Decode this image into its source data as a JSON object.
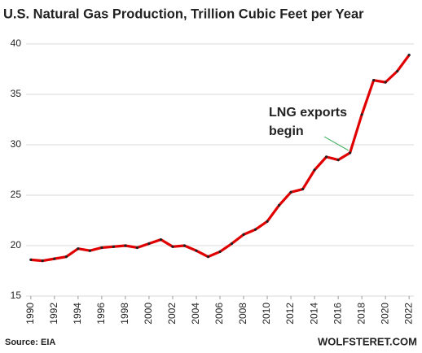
{
  "chart_data": {
    "type": "line",
    "title": "U.S. Natural Gas Production,  Trillion Cubic Feet per Year",
    "x": [
      1990,
      1991,
      1992,
      1993,
      1994,
      1995,
      1996,
      1997,
      1998,
      1999,
      2000,
      2001,
      2002,
      2003,
      2004,
      2005,
      2006,
      2007,
      2008,
      2009,
      2010,
      2011,
      2012,
      2013,
      2014,
      2015,
      2016,
      2017,
      2018,
      2019,
      2020,
      2021,
      2022
    ],
    "series": [
      {
        "name": "U.S. Natural Gas Production",
        "color": "#e00000",
        "values": [
          18.6,
          18.5,
          18.7,
          18.9,
          19.7,
          19.5,
          19.8,
          19.9,
          20.0,
          19.8,
          20.2,
          20.6,
          19.9,
          20.0,
          19.5,
          18.9,
          19.4,
          20.2,
          21.1,
          21.6,
          22.4,
          24.0,
          25.3,
          25.6,
          27.5,
          28.8,
          28.5,
          29.2,
          33.0,
          36.4,
          36.2,
          37.3,
          38.9
        ]
      }
    ],
    "xlim": [
      1989.6,
      2022.4
    ],
    "xticks": [
      1990,
      1992,
      1994,
      1996,
      1998,
      2000,
      2002,
      2004,
      2006,
      2008,
      2010,
      2012,
      2014,
      2016,
      2018,
      2020,
      2022
    ],
    "ylim": [
      15,
      40
    ],
    "yticks": [
      15,
      20,
      25,
      30,
      35,
      40
    ],
    "grid": true,
    "annotation": {
      "lines": [
        "LNG exports",
        "begin"
      ],
      "x": 2017,
      "color": "#2aa84a"
    },
    "source": "Source: EIA",
    "credit": "WOLFSTERET.COM"
  }
}
